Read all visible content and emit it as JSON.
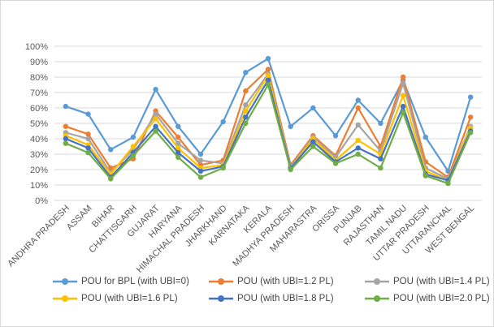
{
  "chart_data": {
    "type": "line",
    "title": "",
    "xlabel": "",
    "ylabel": "",
    "ylim": [
      0,
      100
    ],
    "grid": true,
    "legend_position": "bottom",
    "y_tick_labels": [
      "0%",
      "10%",
      "20%",
      "30%",
      "40%",
      "50%",
      "60%",
      "70%",
      "80%",
      "90%",
      "100%"
    ],
    "categories": [
      "ANDHRA PRADESH",
      "ASSAM",
      "BIHAR",
      "CHATTISGARH",
      "GUJARAT",
      "HARYANA",
      "HIMACHAL PRADESH",
      "JHARKHAND",
      "KARNATAKA",
      "KERALA",
      "MADHYA PRADESH",
      "MAHARASTRA",
      "ORISSA",
      "PUNJAB",
      "RAJASTHAN",
      "TAMIL NADU",
      "UTTAR PRADESH",
      "UTTARANCHAL",
      "WEST BENGAL"
    ],
    "series": [
      {
        "name": "POU for BPL (with UBI=0)",
        "color": "#5B9BD5",
        "values": [
          61,
          56,
          33,
          41,
          72,
          48,
          30,
          51,
          83,
          92,
          48,
          60,
          42,
          65,
          50,
          78,
          41,
          19,
          67
        ]
      },
      {
        "name": "POU (with UBI=1.2 PL)",
        "color": "#ED7D31",
        "values": [
          48,
          43,
          21,
          27,
          58,
          41,
          23,
          26,
          71,
          85,
          23,
          42,
          29,
          60,
          35,
          80,
          25,
          15,
          54
        ]
      },
      {
        "name": "POU (with UBI=1.4 PL)",
        "color": "#A5A5A5",
        "values": [
          44,
          40,
          18,
          33,
          56,
          37,
          26,
          24,
          62,
          82,
          22,
          41,
          28,
          49,
          32,
          76,
          21,
          14,
          48
        ]
      },
      {
        "name": "POU (with UBI=1.6 PL)",
        "color": "#FFC000",
        "values": [
          42,
          36,
          17,
          35,
          53,
          34,
          21,
          23,
          58,
          81,
          21,
          40,
          26,
          39,
          30,
          68,
          19,
          13,
          47
        ]
      },
      {
        "name": "POU (with UBI=1.8 PL)",
        "color": "#4472C4",
        "values": [
          40,
          34,
          15,
          31,
          48,
          31,
          19,
          22,
          54,
          78,
          21,
          38,
          25,
          34,
          27,
          61,
          17,
          13,
          45
        ]
      },
      {
        "name": "POU (with UBI=2.0 PL)",
        "color": "#70AD47",
        "values": [
          37,
          31,
          14,
          29,
          45,
          28,
          15,
          21,
          50,
          75,
          20,
          35,
          24,
          30,
          21,
          57,
          16,
          11,
          44
        ]
      }
    ],
    "style": {
      "grid_color": "#D9D9D9",
      "axis_text_color": "#595959",
      "legend_text_color": "#444444",
      "background": "#FFFFFF",
      "frame_border_color": "#D9D9D9"
    }
  }
}
